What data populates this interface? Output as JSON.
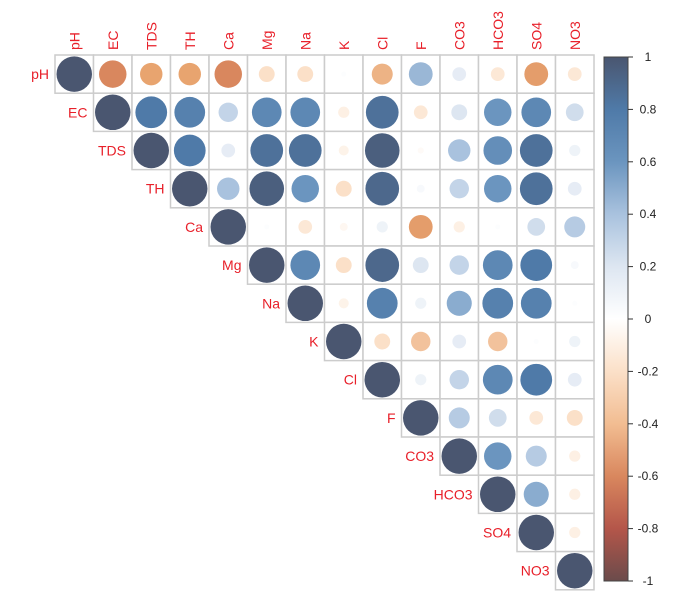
{
  "chart_data": {
    "type": "heatmap",
    "subtype": "correlation-circle-upper",
    "title": "",
    "variables": [
      "pH",
      "EC",
      "TDS",
      "TH",
      "Ca",
      "Mg",
      "Na",
      "K",
      "Cl",
      "F",
      "CO3",
      "HCO3",
      "SO4",
      "NO3"
    ],
    "matrix": [
      [
        1,
        -0.6,
        -0.4,
        -0.4,
        -0.6,
        -0.2,
        -0.2,
        0.02,
        -0.35,
        0.45,
        0.15,
        -0.15,
        -0.45,
        -0.15
      ],
      [
        null,
        1,
        0.8,
        0.75,
        0.3,
        0.7,
        0.7,
        -0.1,
        0.85,
        -0.15,
        0.2,
        0.6,
        0.7,
        0.25
      ],
      [
        null,
        null,
        1,
        0.8,
        0.15,
        0.85,
        0.85,
        -0.08,
        0.95,
        -0.03,
        0.4,
        0.65,
        0.85,
        0.1
      ],
      [
        null,
        null,
        null,
        1,
        0.4,
        0.95,
        0.6,
        -0.2,
        0.9,
        0.05,
        0.3,
        0.6,
        0.85,
        0.15
      ],
      [
        null,
        null,
        null,
        null,
        1,
        0.02,
        -0.15,
        -0.05,
        0.1,
        -0.45,
        -0.1,
        0.02,
        0.25,
        0.35
      ],
      [
        null,
        null,
        null,
        null,
        null,
        1,
        0.7,
        -0.2,
        0.9,
        0.2,
        0.3,
        0.7,
        0.8,
        0.05
      ],
      [
        null,
        null,
        null,
        null,
        null,
        null,
        1,
        -0.08,
        0.75,
        0.1,
        0.5,
        0.75,
        0.75,
        0.02
      ],
      [
        null,
        null,
        null,
        null,
        null,
        null,
        null,
        1,
        -0.2,
        -0.3,
        0.15,
        -0.3,
        0.02,
        0.1
      ],
      [
        null,
        null,
        null,
        null,
        null,
        null,
        null,
        null,
        1,
        0.1,
        0.3,
        0.7,
        0.8,
        0.15
      ],
      [
        null,
        null,
        null,
        null,
        null,
        null,
        null,
        null,
        null,
        1,
        0.35,
        0.25,
        -0.15,
        -0.2
      ],
      [
        null,
        null,
        null,
        null,
        null,
        null,
        null,
        null,
        null,
        null,
        1,
        0.6,
        0.35,
        -0.1
      ],
      [
        null,
        null,
        null,
        null,
        null,
        null,
        null,
        null,
        null,
        null,
        null,
        1,
        0.5,
        -0.1
      ],
      [
        null,
        null,
        null,
        null,
        null,
        null,
        null,
        null,
        null,
        null,
        null,
        null,
        1,
        -0.1
      ],
      [
        null,
        null,
        null,
        null,
        null,
        null,
        null,
        null,
        null,
        null,
        null,
        null,
        null,
        1
      ]
    ],
    "colorbar": {
      "ticks": [
        "1",
        "0.8",
        "0.6",
        "0.4",
        "0.2",
        "0",
        "-0.2",
        "-0.4",
        "-0.6",
        "-0.8",
        "-1"
      ],
      "range": [
        -1,
        1
      ],
      "colors": {
        "neg1": "#6b4b4b",
        "neg08": "#b4564a",
        "neg04": "#e8a46f",
        "zero": "#ffffff",
        "pos04": "#a9c2de",
        "pos08": "#4f7aa8",
        "pos1": "#4a5670"
      }
    },
    "label_color": "#e8202a",
    "grid_color": "#cccccc"
  }
}
